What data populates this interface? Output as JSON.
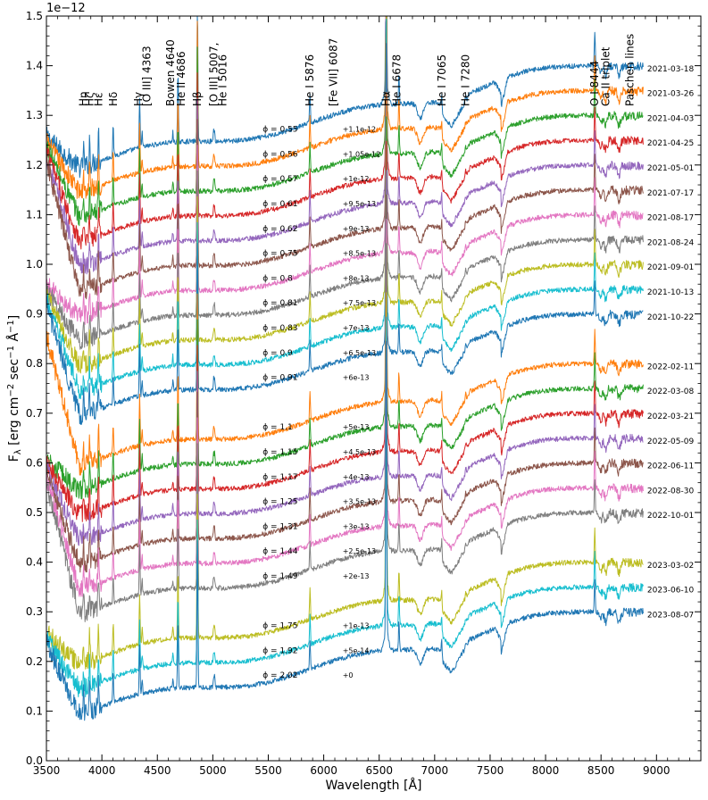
{
  "chart_data": {
    "type": "line",
    "title": "",
    "xlabel": "Wavelength [Å]",
    "ylabel_main": "F",
    "ylabel_sub": "λ",
    "ylabel_rest": " [erg cm",
    "ylabel_exp1": "−2",
    "ylabel_mid": " sec",
    "ylabel_exp2": "−1",
    "ylabel_end": " Å",
    "ylabel_exp3": "−1",
    "ylabel_close": "]",
    "offset_text": "1e−12",
    "xlim": [
      3500,
      9400
    ],
    "ylim": [
      0.0,
      1.5
    ],
    "xticks": [
      3500,
      4000,
      4500,
      5000,
      5500,
      6000,
      6500,
      7000,
      7500,
      8000,
      8500,
      9000
    ],
    "xtick_labels": [
      "3500",
      "4000",
      "4500",
      "5000",
      "5500",
      "6000",
      "6500",
      "7000",
      "7500",
      "8000",
      "8500",
      "9000"
    ],
    "yticks": [
      0.0,
      0.1,
      0.2,
      0.3,
      0.4,
      0.5,
      0.6,
      0.7,
      0.8,
      0.9,
      1.0,
      1.1,
      1.2,
      1.3,
      1.4,
      1.5
    ],
    "ytick_labels": [
      "0.0",
      "0.1",
      "0.2",
      "0.3",
      "0.4",
      "0.5",
      "0.6",
      "0.7",
      "0.8",
      "0.9",
      "1.0",
      "1.1",
      "1.2",
      "1.3",
      "1.4",
      "1.5"
    ],
    "line_annotations": [
      {
        "label": "Hα",
        "wavelength": 6563
      },
      {
        "label": "Hβ",
        "wavelength": 4861
      },
      {
        "label": "Hγ",
        "wavelength": 4340
      },
      {
        "label": "Hδ",
        "wavelength": 4102
      },
      {
        "label": "Hε",
        "wavelength": 3970
      },
      {
        "label": "Hζ",
        "wavelength": 3889
      },
      {
        "label": "Hη",
        "wavelength": 3835
      },
      {
        "label": "[O III] 4363",
        "wavelength": 4363
      },
      {
        "label": "Bowen 4640",
        "wavelength": 4640
      },
      {
        "label": "He II 4686",
        "wavelength": 4686
      },
      {
        "label": "[O III] 5007,",
        "wavelength": 5007
      },
      {
        "label": "He I  5016",
        "wavelength": 5016
      },
      {
        "label": "He I 5876",
        "wavelength": 5876
      },
      {
        "label": "[Fe VII] 6087",
        "wavelength": 6087
      },
      {
        "label": "He I 6678",
        "wavelength": 6678
      },
      {
        "label": "He I 7065",
        "wavelength": 7065
      },
      {
        "label": "He I 7280",
        "wavelength": 7280
      },
      {
        "label": "O I 8444",
        "wavelength": 8444
      },
      {
        "label": "Ca II triplet",
        "wavelength": 8542
      },
      {
        "label": "Paschen lines",
        "wavelength": 8750
      }
    ],
    "series": [
      {
        "name": "2021-03-18",
        "phase": "ϕ = 0.55",
        "offset_label": "+1.1e-12",
        "offset": 1.1,
        "color": "#1f77b4"
      },
      {
        "name": "2021-03-26",
        "phase": "ϕ = 0.56",
        "offset_label": "+1.05e-12",
        "offset": 1.05,
        "color": "#ff7f0e"
      },
      {
        "name": "2021-04-03",
        "phase": "ϕ = 0.57",
        "offset_label": "+1e-12",
        "offset": 1.0,
        "color": "#2ca02c"
      },
      {
        "name": "2021-04-25",
        "phase": "ϕ = 0.61",
        "offset_label": "+9.5e-13",
        "offset": 0.95,
        "color": "#d62728"
      },
      {
        "name": "2021-05-01",
        "phase": "ϕ = 0.62",
        "offset_label": "+9e-13",
        "offset": 0.9,
        "color": "#9467bd"
      },
      {
        "name": "2021-07-17",
        "phase": "ϕ = 0.75",
        "offset_label": "+8.5e-13",
        "offset": 0.85,
        "color": "#8c564b"
      },
      {
        "name": "2021-08-17",
        "phase": "ϕ = 0.8",
        "offset_label": "+8e-13",
        "offset": 0.8,
        "color": "#e377c2"
      },
      {
        "name": "2021-08-24",
        "phase": "ϕ = 0.81",
        "offset_label": "+7.5e-13",
        "offset": 0.75,
        "color": "#7f7f7f"
      },
      {
        "name": "2021-09-01",
        "phase": "ϕ = 0.83",
        "offset_label": "+7e-13",
        "offset": 0.7,
        "color": "#bcbd22"
      },
      {
        "name": "2021-10-13",
        "phase": "ϕ = 0.9",
        "offset_label": "+6.5e-13",
        "offset": 0.65,
        "color": "#17becf"
      },
      {
        "name": "2021-10-22",
        "phase": "ϕ = 0.91",
        "offset_label": "+6e-13",
        "offset": 0.6,
        "color": "#1f77b4"
      },
      {
        "name": "2022-02-11",
        "phase": "ϕ = 1.1",
        "offset_label": "+5e-13",
        "offset": 0.5,
        "color": "#ff7f0e"
      },
      {
        "name": "2022-03-08",
        "phase": "ϕ = 1.15",
        "offset_label": "+4.5e-13",
        "offset": 0.45,
        "color": "#2ca02c"
      },
      {
        "name": "2022-03-21",
        "phase": "ϕ = 1.17",
        "offset_label": "+4e-13",
        "offset": 0.4,
        "color": "#d62728"
      },
      {
        "name": "2022-05-09",
        "phase": "ϕ = 1.25",
        "offset_label": "+3.5e-13",
        "offset": 0.35,
        "color": "#9467bd"
      },
      {
        "name": "2022-06-11",
        "phase": "ϕ = 1.31",
        "offset_label": "+3e-13",
        "offset": 0.3,
        "color": "#8c564b"
      },
      {
        "name": "2022-08-30",
        "phase": "ϕ = 1.44",
        "offset_label": "+2.5e-13",
        "offset": 0.25,
        "color": "#e377c2"
      },
      {
        "name": "2022-10-01",
        "phase": "ϕ = 1.49",
        "offset_label": "+2e-13",
        "offset": 0.2,
        "color": "#7f7f7f"
      },
      {
        "name": "2023-03-02",
        "phase": "ϕ = 1.75",
        "offset_label": "+1e-13",
        "offset": 0.1,
        "color": "#bcbd22"
      },
      {
        "name": "2023-06-10",
        "phase": "ϕ = 1.92",
        "offset_label": "+5e-14",
        "offset": 0.05,
        "color": "#17becf"
      },
      {
        "name": "2023-08-07",
        "phase": "ϕ = 2.02",
        "offset_label": "+0",
        "offset": 0.0,
        "color": "#1f77b4"
      }
    ]
  }
}
